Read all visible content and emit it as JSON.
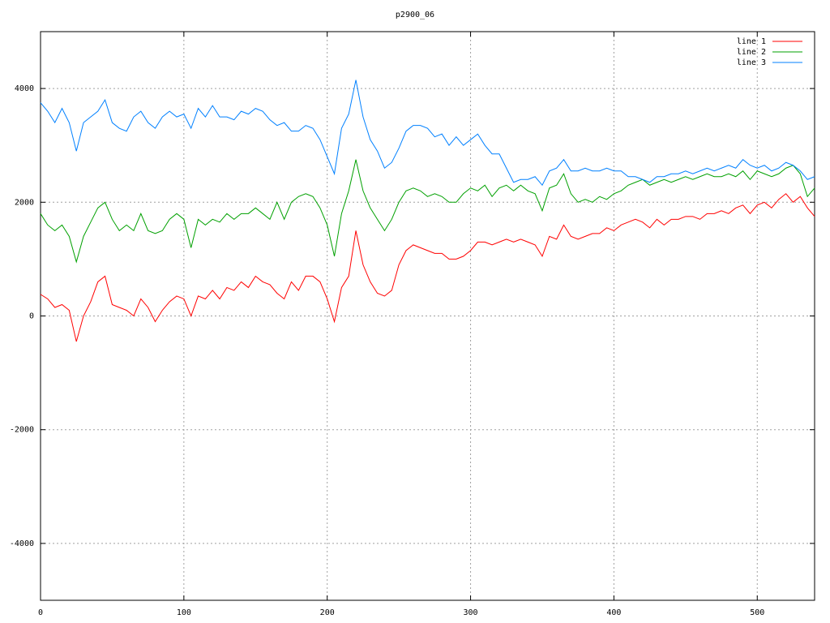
{
  "chart_data": {
    "type": "line",
    "title": "p2900_06",
    "x": [
      0,
      5,
      10,
      15,
      20,
      25,
      30,
      35,
      40,
      45,
      50,
      55,
      60,
      65,
      70,
      75,
      80,
      85,
      90,
      95,
      100,
      105,
      110,
      115,
      120,
      125,
      130,
      135,
      140,
      145,
      150,
      155,
      160,
      165,
      170,
      175,
      180,
      185,
      190,
      195,
      200,
      205,
      210,
      215,
      220,
      225,
      230,
      235,
      240,
      245,
      250,
      255,
      260,
      265,
      270,
      275,
      280,
      285,
      290,
      295,
      300,
      305,
      310,
      315,
      320,
      325,
      330,
      335,
      340,
      345,
      350,
      355,
      360,
      365,
      370,
      375,
      380,
      385,
      390,
      395,
      400,
      405,
      410,
      415,
      420,
      425,
      430,
      435,
      440,
      445,
      450,
      455,
      460,
      465,
      470,
      475,
      480,
      485,
      490,
      495,
      500,
      505,
      510,
      515,
      520,
      525,
      530,
      535,
      540
    ],
    "series": [
      {
        "name": "line 1",
        "color": "#ff0000",
        "values": [
          380,
          300,
          150,
          200,
          100,
          -450,
          0,
          250,
          600,
          700,
          200,
          150,
          100,
          0,
          300,
          150,
          -100,
          100,
          250,
          350,
          300,
          0,
          350,
          300,
          450,
          300,
          500,
          450,
          600,
          500,
          700,
          600,
          550,
          400,
          300,
          600,
          450,
          700,
          700,
          600,
          300,
          -100,
          500,
          700,
          1500,
          900,
          600,
          400,
          350,
          450,
          900,
          1150,
          1250,
          1200,
          1150,
          1100,
          1100,
          1000,
          1000,
          1050,
          1150,
          1300,
          1300,
          1250,
          1300,
          1350,
          1300,
          1350,
          1300,
          1250,
          1050,
          1400,
          1350,
          1600,
          1400,
          1350,
          1400,
          1450,
          1450,
          1550,
          1500,
          1600,
          1650,
          1700,
          1650,
          1550,
          1700,
          1600,
          1700,
          1700,
          1750,
          1750,
          1700,
          1800,
          1800,
          1850,
          1800,
          1900,
          1950,
          1800,
          1950,
          2000,
          1900,
          2050,
          2150,
          2000,
          2100,
          1900,
          1750
        ]
      },
      {
        "name": "line 2",
        "color": "#00a000",
        "values": [
          1800,
          1600,
          1500,
          1600,
          1400,
          950,
          1400,
          1650,
          1900,
          2000,
          1700,
          1500,
          1600,
          1500,
          1800,
          1500,
          1450,
          1500,
          1700,
          1800,
          1700,
          1200,
          1700,
          1600,
          1700,
          1650,
          1800,
          1700,
          1800,
          1800,
          1900,
          1800,
          1700,
          2000,
          1700,
          2000,
          2100,
          2150,
          2100,
          1900,
          1600,
          1050,
          1800,
          2200,
          2750,
          2200,
          1900,
          1700,
          1500,
          1700,
          2000,
          2200,
          2250,
          2200,
          2100,
          2150,
          2100,
          2000,
          2000,
          2150,
          2250,
          2200,
          2300,
          2100,
          2250,
          2300,
          2200,
          2300,
          2200,
          2150,
          1850,
          2250,
          2300,
          2500,
          2150,
          2000,
          2050,
          2000,
          2100,
          2050,
          2150,
          2200,
          2300,
          2350,
          2400,
          2300,
          2350,
          2400,
          2350,
          2400,
          2450,
          2400,
          2450,
          2500,
          2450,
          2450,
          2500,
          2450,
          2550,
          2400,
          2550,
          2500,
          2450,
          2500,
          2600,
          2650,
          2500,
          2100,
          2250
        ]
      },
      {
        "name": "line 3",
        "color": "#0080ff",
        "values": [
          3750,
          3600,
          3400,
          3650,
          3400,
          2900,
          3400,
          3500,
          3600,
          3800,
          3400,
          3300,
          3250,
          3500,
          3600,
          3400,
          3300,
          3500,
          3600,
          3500,
          3550,
          3300,
          3650,
          3500,
          3700,
          3500,
          3500,
          3450,
          3600,
          3550,
          3650,
          3600,
          3450,
          3350,
          3400,
          3250,
          3250,
          3350,
          3300,
          3100,
          2800,
          2500,
          3300,
          3550,
          4150,
          3500,
          3100,
          2900,
          2600,
          2700,
          2950,
          3250,
          3350,
          3350,
          3300,
          3150,
          3200,
          3000,
          3150,
          3000,
          3100,
          3200,
          3000,
          2850,
          2850,
          2600,
          2350,
          2400,
          2400,
          2450,
          2300,
          2550,
          2600,
          2750,
          2550,
          2550,
          2600,
          2550,
          2550,
          2600,
          2550,
          2550,
          2450,
          2450,
          2400,
          2350,
          2450,
          2450,
          2500,
          2500,
          2550,
          2500,
          2550,
          2600,
          2550,
          2600,
          2650,
          2600,
          2750,
          2650,
          2600,
          2650,
          2550,
          2600,
          2700,
          2650,
          2550,
          2400,
          2450
        ]
      }
    ],
    "xlim": [
      0,
      540
    ],
    "ylim": [
      -5000,
      5000
    ],
    "xticks": [
      0,
      100,
      200,
      300,
      400,
      500
    ],
    "yticks": [
      -4000,
      -2000,
      0,
      2000,
      4000
    ],
    "grid": true,
    "legend": "top-right"
  }
}
